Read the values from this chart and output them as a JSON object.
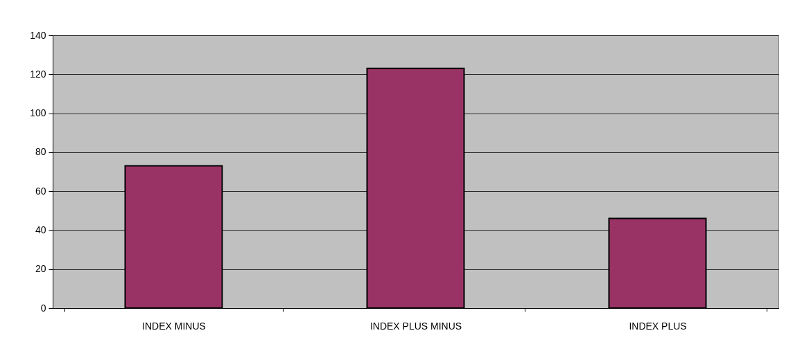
{
  "chart_data": {
    "type": "bar",
    "categories": [
      "INDEX  MINUS",
      "INDEX PLUS MINUS",
      "INDEX PLUS"
    ],
    "values": [
      73,
      123,
      46
    ],
    "color": "#993366",
    "ylim": [
      0,
      140
    ],
    "yticks": [
      0,
      20,
      40,
      60,
      80,
      100,
      120,
      140
    ],
    "grid": "y"
  }
}
